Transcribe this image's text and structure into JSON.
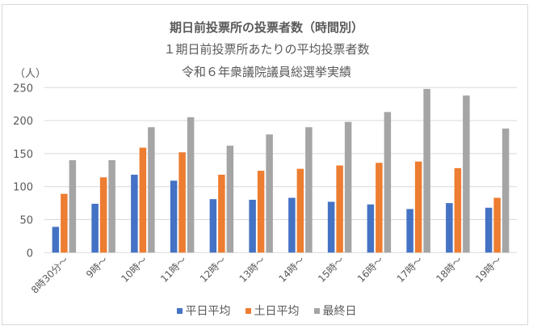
{
  "chart_data": {
    "type": "bar",
    "title": "期日前投票所の投票者数（時間別）",
    "subtitle": [
      "１期日前投票所あたりの平均投票者数",
      "令和６年衆議院議員総選挙実績"
    ],
    "xlabel": "",
    "ylabel": "（人）",
    "ylim": [
      0,
      250
    ],
    "yticks": [
      0,
      50,
      100,
      150,
      200,
      250
    ],
    "grid": true,
    "legend_position": "bottom",
    "categories": [
      "8時30分～",
      "9時～",
      "10時～",
      "11時～",
      "12時～",
      "13時～",
      "14時～",
      "15時～",
      "16時～",
      "17時～",
      "18時～",
      "19時～"
    ],
    "series": [
      {
        "name": "平日平均",
        "color": "#4472c4",
        "values": [
          39,
          74,
          118,
          109,
          81,
          80,
          83,
          77,
          73,
          66,
          75,
          68
        ]
      },
      {
        "name": "土日平均",
        "color": "#ed7d31",
        "values": [
          89,
          114,
          159,
          152,
          118,
          124,
          127,
          132,
          136,
          138,
          128,
          83
        ]
      },
      {
        "name": "最終日",
        "color": "#a5a5a5",
        "values": [
          140,
          140,
          190,
          205,
          162,
          179,
          190,
          198,
          213,
          248,
          238,
          188
        ]
      }
    ]
  },
  "titles": {
    "main": "期日前投票所の投票者数（時間別）",
    "sub1": "１期日前投票所あたりの平均投票者数",
    "sub2": "令和６年衆議院議員総選挙実績",
    "unit": "（人）"
  },
  "legend": [
    {
      "label": "平日平均",
      "color": "#4472c4"
    },
    {
      "label": "土日平均",
      "color": "#ed7d31"
    },
    {
      "label": "最終日",
      "color": "#a5a5a5"
    }
  ]
}
